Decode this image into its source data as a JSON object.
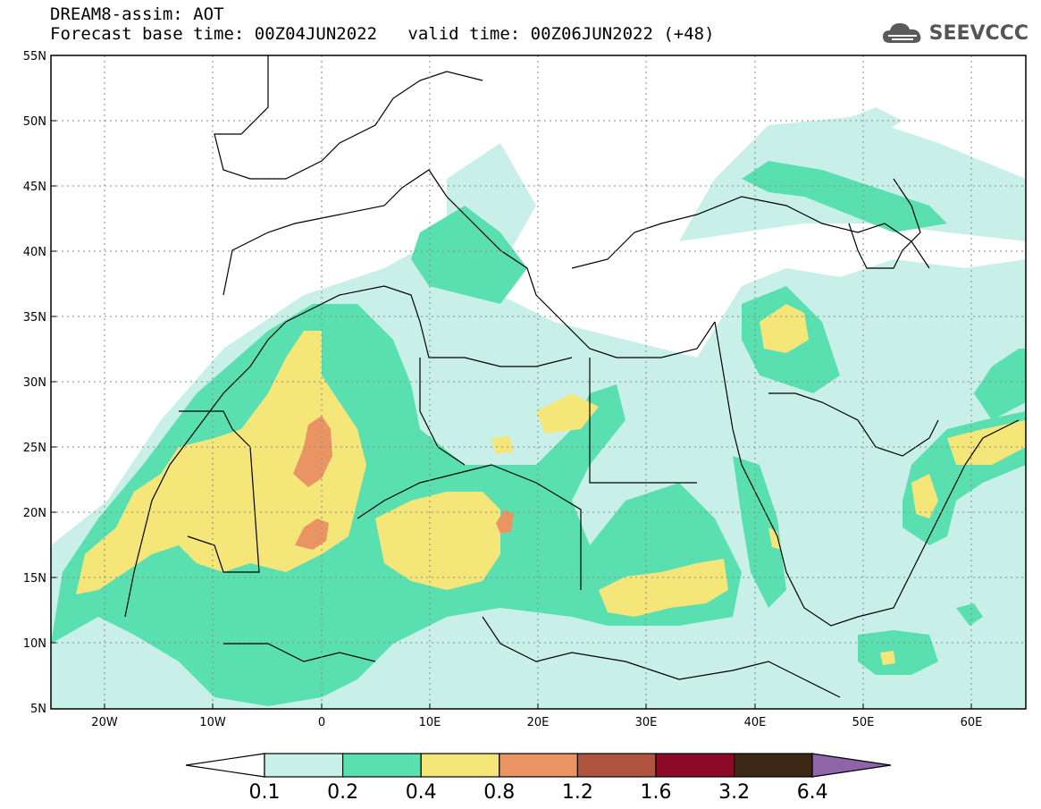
{
  "header": {
    "title": "DREAM8-assim: AOT",
    "base_label": "Forecast base time: 00Z04JUN2022",
    "valid_label": "valid time: 00Z06JUN2022 (+48)",
    "logo_text": "SEEVCCC"
  },
  "map": {
    "lon_range": [
      -25,
      65
    ],
    "lat_range": [
      5,
      55
    ],
    "lat_ticks": [
      "55N",
      "50N",
      "45N",
      "40N",
      "35N",
      "30N",
      "25N",
      "20N",
      "15N",
      "10N",
      "5N"
    ],
    "lon_ticks": [
      "20W",
      "10W",
      "0",
      "10E",
      "20E",
      "30E",
      "40E",
      "50E",
      "60E"
    ],
    "gridlines": "dotted"
  },
  "colorbar": {
    "labels": [
      "0.1",
      "0.2",
      "0.4",
      "0.8",
      "1.2",
      "1.6",
      "3.2",
      "6.4"
    ],
    "colors": [
      "#c8f0e8",
      "#5ae0b0",
      "#f5e67a",
      "#ea9464",
      "#b05440",
      "#8c0a28",
      "#3c2814",
      "#9064a8"
    ]
  }
}
